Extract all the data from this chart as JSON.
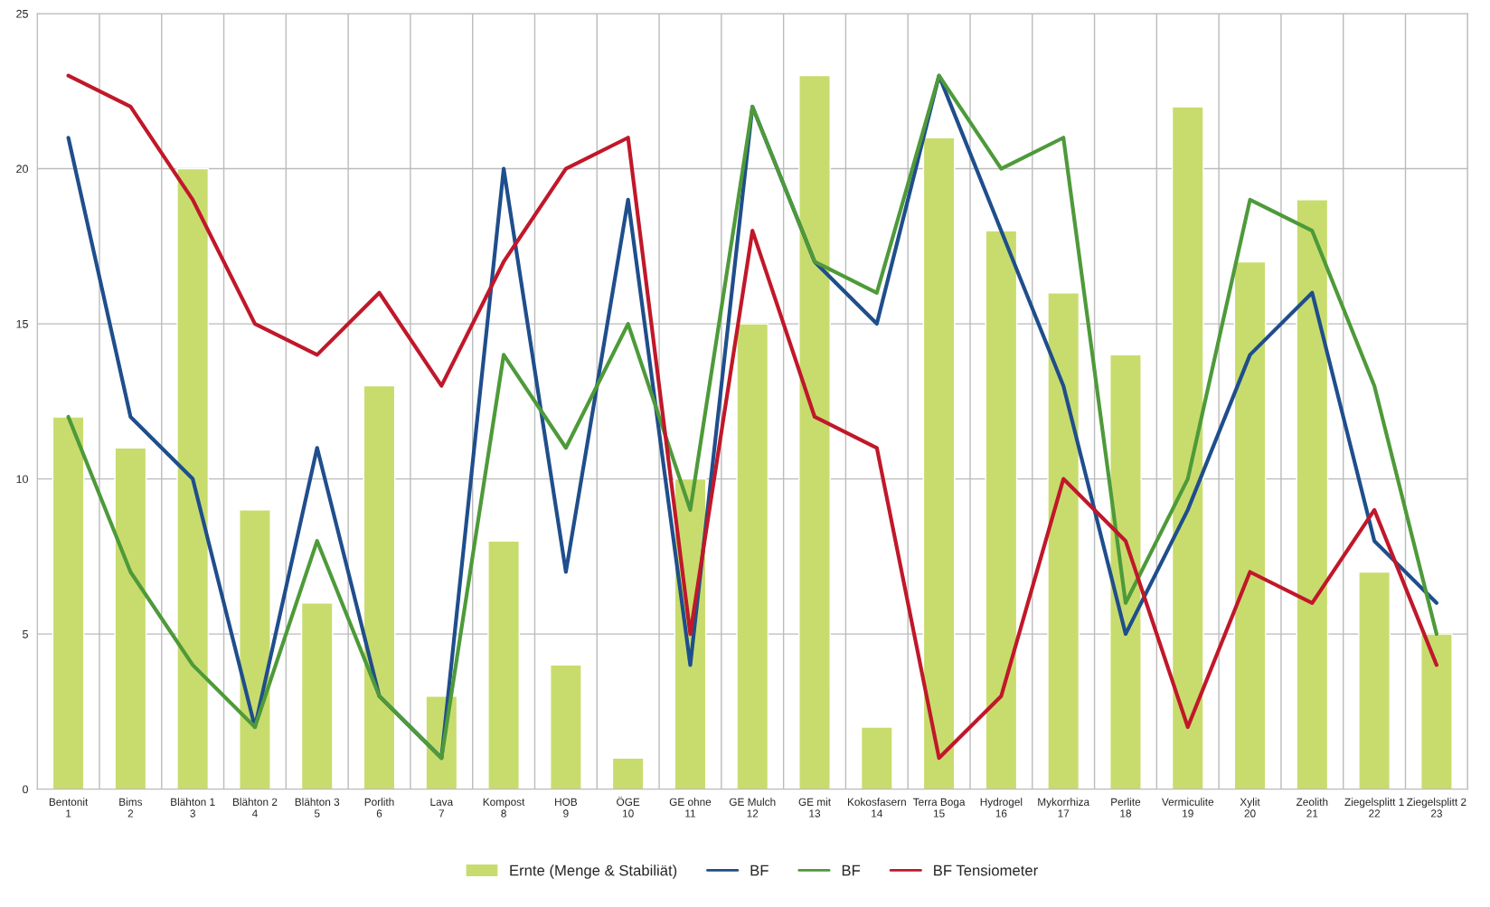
{
  "chart_data": {
    "type": "bar",
    "categories": [
      "Bentonit\n1",
      "Bims\n2",
      "Blähton 1\n3",
      "Blähton 2\n4",
      "Blähton 3\n5",
      "Porlith\n6",
      "Lava\n7",
      "Kompost\n8",
      "HOB\n9",
      "ÖGE\n10",
      "GE ohne\n11",
      "GE Mulch\n12",
      "GE mit\n13",
      "Kokosfasern\n14",
      "Terra Boga\n15",
      "Hydrogel\n16",
      "Mykorrhiza\n17",
      "Perlite\n18",
      "Vermiculite\n19",
      "Xylit\n20",
      "Zeolith\n21",
      "Ziegelsplitt 1\n22",
      "Ziegelsplitt 2\n23"
    ],
    "series": [
      {
        "name": "Ernte (Menge & Stabiliät)",
        "color": "#c8dc6e",
        "values": [
          12,
          11,
          20,
          9,
          6,
          13,
          3,
          8,
          4,
          1,
          10,
          15,
          23,
          2,
          21,
          18,
          16,
          14,
          22,
          17,
          19,
          7,
          5
        ]
      },
      {
        "name": "BF",
        "type": "line",
        "color": "#1f4e8c",
        "values": [
          21,
          12,
          10,
          2,
          11,
          3,
          1,
          20,
          7,
          19,
          4,
          22,
          17,
          15,
          23,
          18,
          13,
          5,
          9,
          14,
          16,
          8,
          6
        ]
      },
      {
        "name": "BF",
        "type": "line",
        "color": "#4e9a3a",
        "values": [
          12,
          7,
          4,
          2,
          8,
          3,
          1,
          14,
          11,
          15,
          9,
          22,
          17,
          16,
          23,
          20,
          21,
          6,
          10,
          19,
          18,
          13,
          5
        ]
      },
      {
        "name": "BF Tensiometer",
        "type": "line",
        "color": "#c0182a",
        "values": [
          23,
          22,
          19,
          15,
          14,
          16,
          13,
          17,
          20,
          21,
          5,
          18,
          12,
          11,
          1,
          3,
          10,
          8,
          2,
          7,
          6,
          9,
          4
        ]
      }
    ],
    "ylim": [
      0,
      25
    ],
    "yticks": [
      0,
      5,
      10,
      15,
      20,
      25
    ],
    "grid": true,
    "legend": "bottom"
  }
}
